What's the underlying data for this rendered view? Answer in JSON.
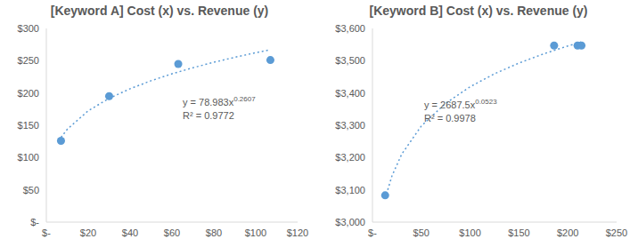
{
  "chart_data": [
    {
      "type": "scatter",
      "title": "[Keyword A] Cost (x) vs. Revenue (y)",
      "x": [
        7,
        30,
        63,
        107
      ],
      "values": [
        126,
        195,
        245,
        251
      ],
      "color": "#5b9bd5",
      "marker": "circle",
      "xlim": [
        0,
        120
      ],
      "xticks": [
        {
          "value": 0,
          "label": "$-"
        },
        {
          "value": 20,
          "label": "$20"
        },
        {
          "value": 40,
          "label": "$40"
        },
        {
          "value": 60,
          "label": "$60"
        },
        {
          "value": 80,
          "label": "$80"
        },
        {
          "value": 100,
          "label": "$100"
        },
        {
          "value": 120,
          "label": "$120"
        }
      ],
      "ylim": [
        0,
        300
      ],
      "yticks": [
        {
          "value": 0,
          "label": "$-"
        },
        {
          "value": 50,
          "label": "$50"
        },
        {
          "value": 100,
          "label": "$100"
        },
        {
          "value": 150,
          "label": "$150"
        },
        {
          "value": 200,
          "label": "$200"
        },
        {
          "value": 250,
          "label": "$250"
        },
        {
          "value": 300,
          "label": "$300"
        }
      ],
      "grid": false,
      "trendline": {
        "x": [
          7,
          10,
          20,
          30,
          40,
          50,
          60,
          70,
          80,
          90,
          100,
          107
        ],
        "values": [
          131.2,
          143.9,
          172.5,
          191.7,
          206.6,
          219.0,
          229.7,
          239.1,
          247.6,
          255.3,
          262.4,
          267.1
        ],
        "color": "#5b9bd5",
        "line_style": "dotted"
      },
      "equation": {
        "text": "y = 78.983x",
        "exponent": "0.2607"
      },
      "r_squared": "R² = 0.9772"
    },
    {
      "type": "scatter",
      "title": "[Keyword B] Cost (x) vs. Revenue (y)",
      "x": [
        13,
        186,
        210,
        214
      ],
      "values": [
        3083,
        3547,
        3547,
        3547
      ],
      "color": "#5b9bd5",
      "marker": "circle",
      "xlim": [
        0,
        250
      ],
      "xticks": [
        {
          "value": 0,
          "label": "$-"
        },
        {
          "value": 50,
          "label": "$50"
        },
        {
          "value": 100,
          "label": "$100"
        },
        {
          "value": 150,
          "label": "$150"
        },
        {
          "value": 200,
          "label": "$200"
        },
        {
          "value": 250,
          "label": "$250"
        }
      ],
      "ylim": [
        3000,
        3600
      ],
      "yticks": [
        {
          "value": 3000,
          "label": "$3,000"
        },
        {
          "value": 3100,
          "label": "$3,100"
        },
        {
          "value": 3200,
          "label": "$3,200"
        },
        {
          "value": 3300,
          "label": "$3,300"
        },
        {
          "value": 3400,
          "label": "$3,400"
        },
        {
          "value": 3500,
          "label": "$3,500"
        },
        {
          "value": 3600,
          "label": "$3,600"
        }
      ],
      "grid": false,
      "trendline": {
        "x": [
          13,
          20,
          30,
          50,
          75,
          100,
          125,
          150,
          175,
          200,
          214
        ],
        "values": [
          3073.5,
          3143.4,
          3210.7,
          3297.6,
          3368.2,
          3419.3,
          3459.6,
          3492.7,
          3521.0,
          3545.6,
          3558.2
        ],
        "color": "#5b9bd5",
        "line_style": "dotted"
      },
      "equation": {
        "text": "y = 2687.5x",
        "exponent": "0.0523"
      },
      "r_squared": "R² = 0.9978"
    }
  ]
}
